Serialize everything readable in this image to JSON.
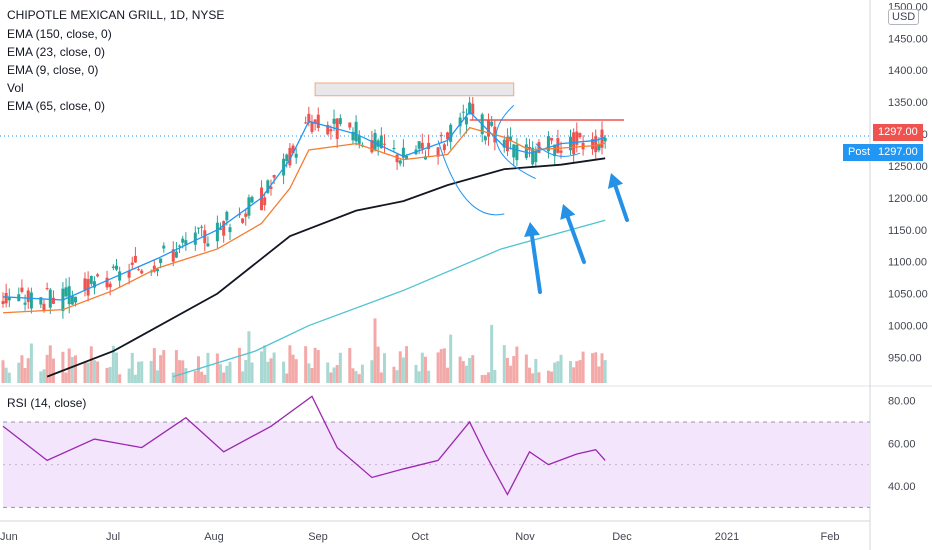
{
  "legend": {
    "title": "CHIPOTLE MEXICAN GRILL, 1D, NYSE",
    "ema150": "EMA (150, close, 0)",
    "ema23": "EMA (23, close, 0)",
    "ema9": "EMA (9, close, 0)",
    "vol": "Vol",
    "ema65": "EMA (65, close, 0)"
  },
  "price_axis": {
    "currency": "USD",
    "ticks": [
      "1500.00",
      "1450.00",
      "1400.00",
      "1350.00",
      "1300.00",
      "1250.00",
      "1200.00",
      "1150.00",
      "1100.00",
      "1050.00",
      "1000.00",
      "950.00"
    ],
    "last_price": "1297.00",
    "post_label": "Post",
    "post_price": "1297.00"
  },
  "rsi_pane": {
    "label": "RSI (14, close)",
    "ticks": [
      "80.00",
      "60.00",
      "40.00"
    ],
    "upper_band": 70,
    "lower_band": 30
  },
  "time_axis": {
    "labels": [
      "Jun",
      "Jul",
      "Aug",
      "Sep",
      "Oct",
      "Nov",
      "Dec",
      "2021",
      "Feb"
    ]
  },
  "colors": {
    "up": "#26a69a",
    "down": "#ef5350",
    "ema9": "#2196f3",
    "ema23": "#f57c31",
    "ema65": "#131722",
    "ema150": "#4fc3d3",
    "rsi": "#9c27b0",
    "rsi_band": "#f3e5fc",
    "arrow": "#2491e6"
  },
  "chart_data": [
    {
      "type": "candlestick",
      "title": "CHIPOTLE MEXICAN GRILL, 1D, NYSE",
      "ylim": [
        910,
        1510
      ],
      "x_range": [
        "2020-05-27",
        "2021-02-26"
      ],
      "series": [
        {
          "name": "EMA (9, close, 0)",
          "x": [
            "2020-05-27",
            "2020-06-15",
            "2020-07-01",
            "2020-07-15",
            "2020-08-03",
            "2020-08-17",
            "2020-08-26",
            "2020-09-01",
            "2020-09-16",
            "2020-10-01",
            "2020-10-15",
            "2020-10-22",
            "2020-11-02",
            "2020-11-10",
            "2020-11-20",
            "2020-12-01",
            "2020-12-04"
          ],
          "values": [
            1045,
            1040,
            1075,
            1105,
            1150,
            1200,
            1260,
            1320,
            1300,
            1265,
            1290,
            1335,
            1280,
            1270,
            1285,
            1290,
            1295
          ]
        },
        {
          "name": "EMA (23, close, 0)",
          "x": [
            "2020-05-27",
            "2020-06-15",
            "2020-07-01",
            "2020-07-15",
            "2020-08-03",
            "2020-08-17",
            "2020-08-26",
            "2020-09-01",
            "2020-09-16",
            "2020-10-01",
            "2020-10-15",
            "2020-10-22",
            "2020-11-02",
            "2020-11-10",
            "2020-11-20",
            "2020-12-01",
            "2020-12-04"
          ],
          "values": [
            1020,
            1025,
            1055,
            1090,
            1120,
            1160,
            1215,
            1275,
            1285,
            1260,
            1268,
            1310,
            1295,
            1275,
            1278,
            1282,
            1286
          ]
        },
        {
          "name": "EMA (65, close, 0)",
          "x": [
            "2020-06-10",
            "2020-07-01",
            "2020-08-03",
            "2020-08-26",
            "2020-09-16",
            "2020-10-01",
            "2020-10-15",
            "2020-11-02",
            "2020-11-20",
            "2020-12-04"
          ],
          "values": [
            920,
            960,
            1050,
            1140,
            1180,
            1195,
            1220,
            1245,
            1252,
            1262
          ]
        },
        {
          "name": "EMA (150, close, 0)",
          "x": [
            "2020-07-20",
            "2020-08-15",
            "2020-09-01",
            "2020-10-01",
            "2020-11-01",
            "2020-12-04"
          ],
          "values": [
            920,
            960,
            1000,
            1055,
            1120,
            1165
          ]
        }
      ],
      "last_close": 1297.0,
      "resistance_line": 1322,
      "top_zone": [
        1360,
        1380
      ]
    },
    {
      "type": "line",
      "title": "RSI (14, close)",
      "ylim": [
        25,
        85
      ],
      "upper_band": 70,
      "lower_band": 30,
      "x": [
        "2020-05-27",
        "2020-06-10",
        "2020-06-25",
        "2020-07-10",
        "2020-07-24",
        "2020-08-05",
        "2020-08-20",
        "2020-09-02",
        "2020-09-10",
        "2020-09-21",
        "2020-10-01",
        "2020-10-12",
        "2020-10-22",
        "2020-10-27",
        "2020-11-03",
        "2020-11-10",
        "2020-11-16",
        "2020-11-25",
        "2020-12-01",
        "2020-12-04"
      ],
      "values": [
        68,
        52,
        62,
        58,
        72,
        56,
        68,
        82,
        58,
        44,
        48,
        52,
        70,
        55,
        36,
        56,
        50,
        55,
        57,
        52
      ]
    }
  ]
}
